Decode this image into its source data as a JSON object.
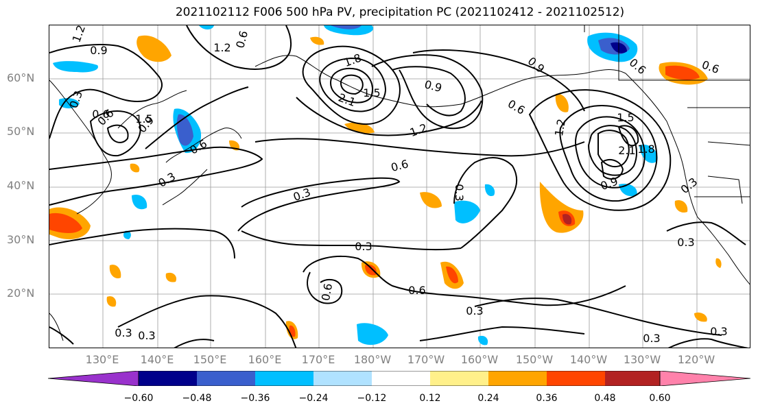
{
  "title": "2021102112 F006 500 hPa PV, precipitation PC (2021102412 - 2021102512)",
  "lat_labels": [
    "60°N",
    "50°N",
    "40°N",
    "30°N",
    "20°N"
  ],
  "lon_labels": [
    "130°E",
    "140°E",
    "150°E",
    "160°E",
    "170°E",
    "180°W",
    "170°W",
    "160°W",
    "150°W",
    "140°W",
    "130°W",
    "120°W"
  ],
  "colorbar": {
    "ticks": [
      "−0.60",
      "−0.48",
      "−0.36",
      "−0.24",
      "−0.12",
      "0.12",
      "0.24",
      "0.36",
      "0.48",
      "0.60"
    ],
    "colors": [
      "#9932cc",
      "#00008b",
      "#3a5fcd",
      "#00bfff",
      "#b0e2ff",
      "#ffffff",
      "#fff08a",
      "#ffa500",
      "#ff4500",
      "#b22222",
      "#ff82ab"
    ]
  },
  "contour_labels": [
    "1.2",
    "0.9",
    "0.6",
    "1.2",
    "0.6",
    "1.5",
    "0.3",
    "0.6",
    "0.9",
    "0.6",
    "1.8",
    "2.1",
    "1.5",
    "0.9",
    "0.6",
    "1.2",
    "0.6",
    "0.9",
    "1.2",
    "1.5",
    "2.1",
    "1.8",
    "0.9",
    "0.6",
    "0.3",
    "0.3",
    "0.6",
    "0.3",
    "0.3",
    "0.3",
    "0.6",
    "0.3",
    "0.6",
    "0.3",
    "0.3",
    "0.3",
    "0.3",
    "0.3"
  ]
}
